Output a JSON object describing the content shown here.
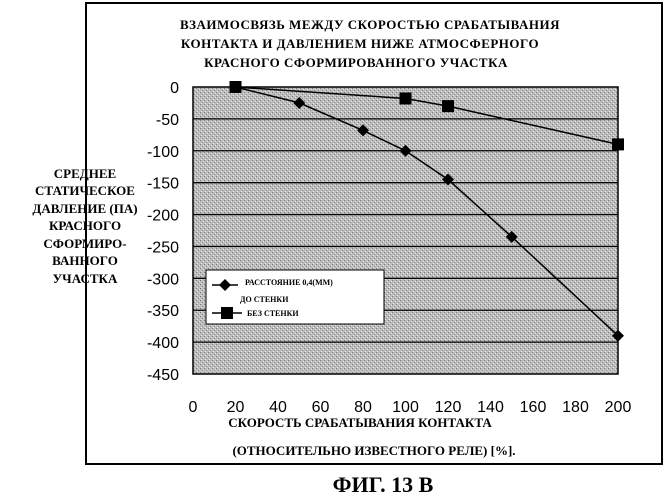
{
  "figure_caption": "ФИГ. 13 В",
  "chart_data": {
    "type": "line",
    "title_lines": [
      "ВЗАИМОСВЯЗЬ МЕЖДУ СКОРОСТЬЮ СРАБАТЫВАНИЯ",
      "КОНТАКТА И ДАВЛЕНИЕМ НИЖЕ АТМОСФЕРНОГО",
      "КРАСНОГО СФОРМИРОВАННОГО УЧАСТКА"
    ],
    "ylabel_lines": [
      "СРЕДНЕЕ",
      "СТАТИЧЕСКОЕ",
      "ДАВЛЕНИЕ (ПА)",
      "КРАСНОГО",
      "СФОРМИРО-",
      "ВАННОГО",
      "УЧАСТКА"
    ],
    "xlabel_lines": [
      "СКОРОСТЬ СРАБАТЫВАНИЯ КОНТАКТА",
      "(ОТНОСИТЕЛЬНО ИЗВЕСТНОГО РЕЛЕ) [%]."
    ],
    "xlim": [
      0,
      200
    ],
    "ylim": [
      -450,
      0
    ],
    "x_ticks": [
      0,
      20,
      40,
      60,
      80,
      100,
      120,
      140,
      160,
      180,
      200
    ],
    "y_ticks": [
      0,
      -50,
      -100,
      -150,
      -200,
      -250,
      -300,
      -350,
      -400,
      -450
    ],
    "legend_position": "lower-left",
    "series": [
      {
        "name": "РАССТОЯНИЕ 0,4(ММ) ДО СТЕНКИ",
        "legend_lines": [
          "РАССТОЯНИЕ 0,4(ММ)",
          "ДО СТЕНКИ"
        ],
        "marker": "diamond",
        "x": [
          20,
          50,
          80,
          100,
          120,
          150,
          200
        ],
        "y": [
          0,
          -25,
          -68,
          -100,
          -145,
          -235,
          -390
        ]
      },
      {
        "name": "БЕЗ СТЕНКИ",
        "legend_lines": [
          "БЕЗ СТЕНКИ"
        ],
        "marker": "square",
        "x": [
          20,
          100,
          120,
          200
        ],
        "y": [
          0,
          -18,
          -30,
          -90
        ]
      }
    ]
  }
}
